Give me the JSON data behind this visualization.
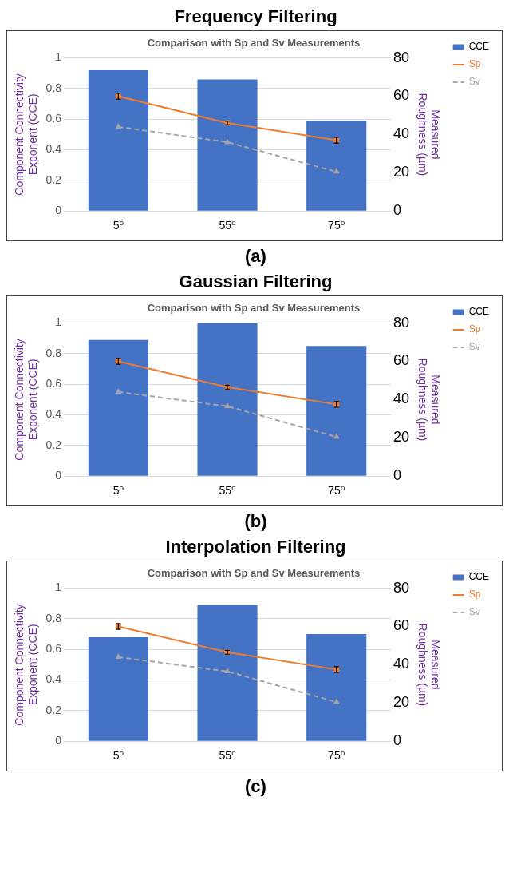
{
  "chart_data": [
    {
      "type": "bar",
      "title": "Frequency Filtering",
      "subtitle": "Comparison with Sp and Sv Measurements",
      "categories": [
        "5⁰",
        "55⁰",
        "75⁰"
      ],
      "ylabel": "Component Connectivity Exponent (CCE)",
      "y2label": "Measured Roughness (µm)",
      "ylim": [
        0,
        1
      ],
      "yticks": [
        0,
        0.2,
        0.4,
        0.6,
        0.8,
        1
      ],
      "y2lim": [
        0,
        80
      ],
      "y2ticks": [
        0,
        20,
        40,
        60,
        80
      ],
      "grid": "y",
      "legend": "right",
      "annotations": [
        "(a)"
      ],
      "series": [
        {
          "name": "CCE",
          "color": "#4472c4",
          "values": [
            0.92,
            0.86,
            0.59
          ]
        },
        {
          "name": "Sp",
          "type": "line",
          "axis": "y2",
          "color": "#ed7d31",
          "marker": "square",
          "line_style": "solid",
          "values": [
            60,
            46,
            37
          ],
          "errors": [
            1.5,
            1,
            1.5
          ]
        },
        {
          "name": "Sv",
          "type": "line",
          "axis": "y2",
          "color": "#a5a5a5",
          "marker": "triangle",
          "line_style": "dashed",
          "values": [
            44,
            36,
            20.5
          ]
        }
      ]
    },
    {
      "type": "bar",
      "title": "Gaussian Filtering",
      "subtitle": "Comparison with Sp and Sv Measurements",
      "categories": [
        "5⁰",
        "55⁰",
        "75⁰"
      ],
      "ylabel": "Component Connectivity Exponent (CCE)",
      "y2label": "Measured Roughness (µm)",
      "ylim": [
        0,
        1
      ],
      "yticks": [
        0,
        0.2,
        0.4,
        0.6,
        0.8,
        1
      ],
      "y2lim": [
        0,
        80
      ],
      "y2ticks": [
        0,
        20,
        40,
        60,
        80
      ],
      "grid": "y",
      "legend": "right",
      "annotations": [
        "(b)"
      ],
      "series": [
        {
          "name": "CCE",
          "color": "#4472c4",
          "values": [
            0.89,
            1.0,
            0.85
          ]
        },
        {
          "name": "Sp",
          "type": "line",
          "axis": "y2",
          "color": "#ed7d31",
          "marker": "square",
          "line_style": "solid",
          "values": [
            60,
            46.5,
            37.5
          ],
          "errors": [
            1.5,
            1,
            1.5
          ]
        },
        {
          "name": "Sv",
          "type": "line",
          "axis": "y2",
          "color": "#a5a5a5",
          "marker": "triangle",
          "line_style": "dashed",
          "values": [
            44,
            36.5,
            20.5
          ]
        }
      ]
    },
    {
      "type": "bar",
      "title": "Interpolation Filtering",
      "subtitle": "Comparison with Sp and Sv Measurements",
      "categories": [
        "5⁰",
        "55⁰",
        "75⁰"
      ],
      "ylabel": "Component Connectivity Exponent (CCE)",
      "y2label": "Measured Roughness (µm)",
      "ylim": [
        0,
        1
      ],
      "yticks": [
        0,
        0.2,
        0.4,
        0.6,
        0.8,
        1
      ],
      "y2lim": [
        0,
        80
      ],
      "y2ticks": [
        0,
        20,
        40,
        60,
        80
      ],
      "grid": "y",
      "legend": "right",
      "annotations": [
        "(c)"
      ],
      "series": [
        {
          "name": "CCE",
          "color": "#4472c4",
          "values": [
            0.68,
            0.89,
            0.7
          ]
        },
        {
          "name": "Sp",
          "type": "line",
          "axis": "y2",
          "color": "#ed7d31",
          "marker": "square",
          "line_style": "solid",
          "values": [
            60,
            46.5,
            37.5
          ],
          "errors": [
            1.5,
            1,
            1.5
          ]
        },
        {
          "name": "Sv",
          "type": "line",
          "axis": "y2",
          "color": "#a5a5a5",
          "marker": "triangle",
          "line_style": "dashed",
          "values": [
            44,
            36.5,
            20.5
          ]
        }
      ]
    }
  ]
}
